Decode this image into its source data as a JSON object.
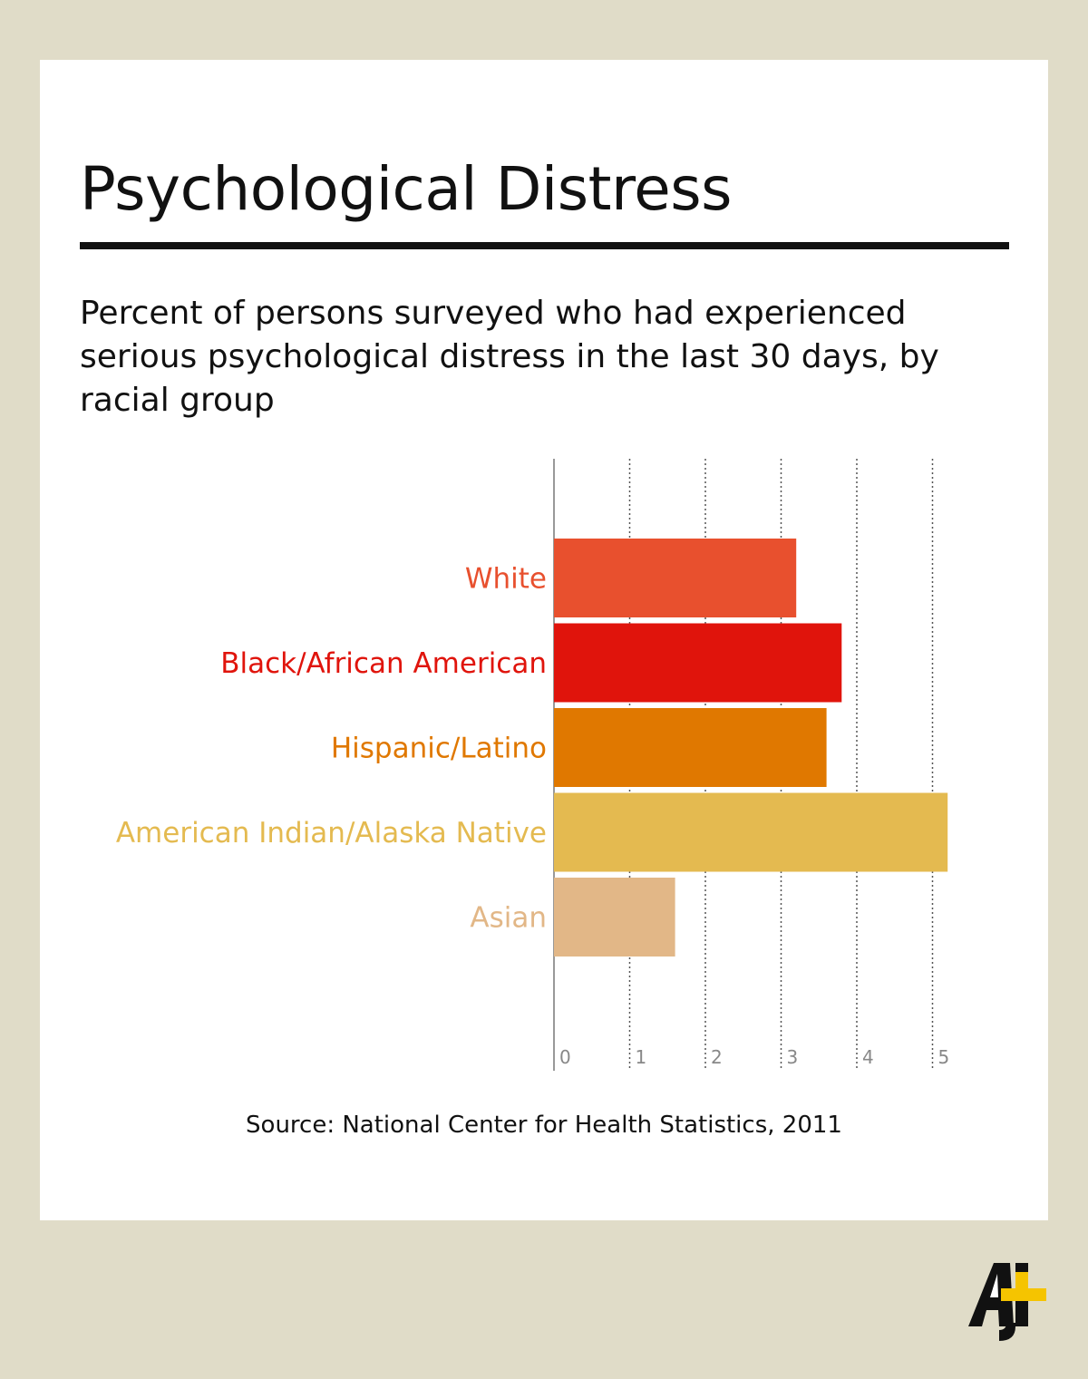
{
  "title": "Psychological Distress",
  "subtitle": "Percent of persons surveyed who had experienced serious psychological distress in the last 30 days, by racial group",
  "source": "Source: National Center for Health Statistics, 2011",
  "logo_text": "AJ+",
  "colors": {
    "background": "#e0dcc8",
    "card": "#ffffff",
    "text": "#111111",
    "axis": "#999999",
    "grid": "#555555",
    "logo_black": "#111111",
    "logo_yellow": "#f5c400"
  },
  "chart_data": {
    "type": "bar",
    "orientation": "horizontal",
    "title": "Psychological Distress",
    "subtitle": "Percent of persons surveyed who had experienced serious psychological distress in the last 30 days, by racial group",
    "categories": [
      "White",
      "Black/African American",
      "Hispanic/Latino",
      "American Indian/Alaska Native",
      "Asian"
    ],
    "values": [
      3.2,
      3.8,
      3.6,
      5.2,
      1.6
    ],
    "bar_colors": [
      "#e8502e",
      "#e0140c",
      "#e07800",
      "#e4ba50",
      "#e2b787"
    ],
    "xticks": [
      0,
      1,
      2,
      3,
      4,
      5
    ],
    "xlim": [
      0,
      5.5
    ],
    "xlabel": "",
    "ylabel": "",
    "grid": "vertical dotted",
    "legend": "none"
  }
}
